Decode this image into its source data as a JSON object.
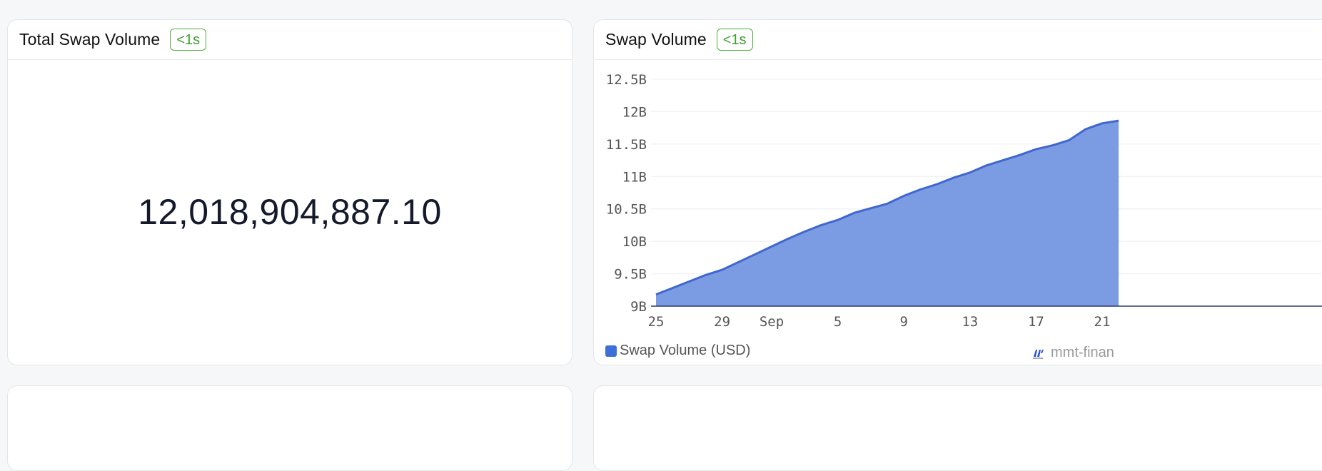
{
  "total_card": {
    "title": "Total Swap Volume",
    "badge": "<1s",
    "value": "12,018,904,887.10"
  },
  "chart_card": {
    "title": "Swap Volume",
    "badge": "<1s",
    "legend_label": "Swap Volume (USD)",
    "watermark": "mmt-finan",
    "colors": {
      "fill": "#7b9be2",
      "line": "#3f67cf",
      "swatch": "#3d6fd6"
    }
  },
  "chart_data": {
    "type": "area",
    "title": "",
    "xlabel": "",
    "ylabel": "",
    "ylim": [
      9000000000,
      12500000000
    ],
    "y_ticks": [
      {
        "value": 9000000000,
        "label": "9B"
      },
      {
        "value": 9500000000,
        "label": "9.5B"
      },
      {
        "value": 10000000000,
        "label": "10B"
      },
      {
        "value": 10500000000,
        "label": "10.5B"
      },
      {
        "value": 11000000000,
        "label": "11B"
      },
      {
        "value": 11500000000,
        "label": "11.5B"
      },
      {
        "value": 12000000000,
        "label": "12B"
      },
      {
        "value": 12500000000,
        "label": "12.5B"
      }
    ],
    "x_ticks": [
      {
        "date": "2025-08-25",
        "label": "25"
      },
      {
        "date": "2025-08-29",
        "label": "29"
      },
      {
        "date": "2025-09-01",
        "label": "Sep"
      },
      {
        "date": "2025-09-05",
        "label": "5"
      },
      {
        "date": "2025-09-09",
        "label": "9"
      },
      {
        "date": "2025-09-13",
        "label": "13"
      },
      {
        "date": "2025-09-17",
        "label": "17"
      },
      {
        "date": "2025-09-21",
        "label": "21"
      }
    ],
    "series": [
      {
        "name": "Swap Volume (USD)",
        "points": [
          {
            "x": "2025-08-25",
            "y": 9180000000
          },
          {
            "x": "2025-08-26",
            "y": 9280000000
          },
          {
            "x": "2025-08-27",
            "y": 9380000000
          },
          {
            "x": "2025-08-28",
            "y": 9480000000
          },
          {
            "x": "2025-08-29",
            "y": 9560000000
          },
          {
            "x": "2025-08-30",
            "y": 9680000000
          },
          {
            "x": "2025-08-31",
            "y": 9800000000
          },
          {
            "x": "2025-09-01",
            "y": 9920000000
          },
          {
            "x": "2025-09-02",
            "y": 10040000000
          },
          {
            "x": "2025-09-03",
            "y": 10150000000
          },
          {
            "x": "2025-09-04",
            "y": 10250000000
          },
          {
            "x": "2025-09-05",
            "y": 10330000000
          },
          {
            "x": "2025-09-06",
            "y": 10440000000
          },
          {
            "x": "2025-09-07",
            "y": 10510000000
          },
          {
            "x": "2025-09-08",
            "y": 10580000000
          },
          {
            "x": "2025-09-09",
            "y": 10700000000
          },
          {
            "x": "2025-09-10",
            "y": 10800000000
          },
          {
            "x": "2025-09-11",
            "y": 10880000000
          },
          {
            "x": "2025-09-12",
            "y": 10980000000
          },
          {
            "x": "2025-09-13",
            "y": 11060000000
          },
          {
            "x": "2025-09-14",
            "y": 11170000000
          },
          {
            "x": "2025-09-15",
            "y": 11250000000
          },
          {
            "x": "2025-09-16",
            "y": 11330000000
          },
          {
            "x": "2025-09-17",
            "y": 11420000000
          },
          {
            "x": "2025-09-18",
            "y": 11480000000
          },
          {
            "x": "2025-09-19",
            "y": 11560000000
          },
          {
            "x": "2025-09-20",
            "y": 11730000000
          },
          {
            "x": "2025-09-21",
            "y": 11820000000
          },
          {
            "x": "2025-09-22",
            "y": 11860000000
          }
        ]
      }
    ],
    "grid": true,
    "legend": "bottom-left"
  }
}
